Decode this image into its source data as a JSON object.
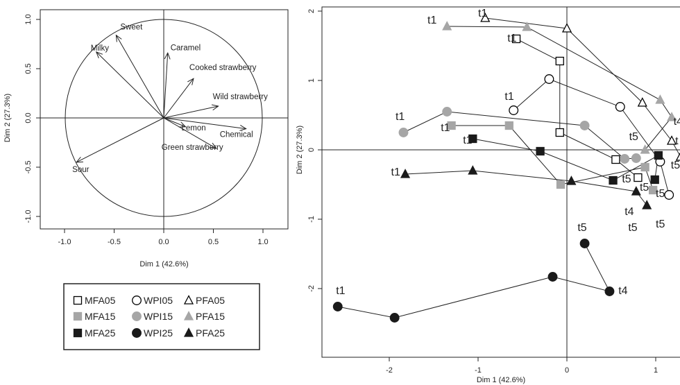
{
  "chart_data": [
    {
      "type": "scatter",
      "subtype": "variable-correlation-circle",
      "xlabel": "Dim 1 (42.6%)",
      "ylabel": "Dim 2 (27.3%)",
      "xlim": [
        -1.2,
        1.2
      ],
      "ylim": [
        -1.05,
        1.05
      ],
      "xticks": [
        -1.0,
        -0.5,
        0.0,
        0.5,
        1.0
      ],
      "yticks": [
        -1.0,
        -0.5,
        0.0,
        0.5,
        1.0
      ],
      "xtick_labels": [
        "-1.0",
        "-0.5",
        "0.0",
        "0.5",
        "1.0"
      ],
      "ytick_labels": [
        "-1.0",
        "-0.5",
        "0.0",
        "0.5",
        "1.0"
      ],
      "vectors": [
        {
          "label": "Sweet",
          "x": -0.48,
          "y": 0.84
        },
        {
          "label": "Milky",
          "x": -0.68,
          "y": 0.67
        },
        {
          "label": "Caramel",
          "x": 0.04,
          "y": 0.66
        },
        {
          "label": "Cooked strawberry",
          "x": 0.3,
          "y": 0.4
        },
        {
          "label": "Wild strawberry",
          "x": 0.55,
          "y": 0.12
        },
        {
          "label": "Lemon",
          "x": 0.22,
          "y": -0.09
        },
        {
          "label": "Chemical",
          "x": 0.83,
          "y": -0.11
        },
        {
          "label": "Green strawberry",
          "x": 0.53,
          "y": -0.31
        },
        {
          "label": "Sour",
          "x": -0.88,
          "y": -0.45
        }
      ]
    },
    {
      "type": "scatter",
      "subtype": "individual-trajectories",
      "xlabel": "Dim 1 (42.6%)",
      "ylabel": "Dim 2 (27.3%)",
      "xlim": [
        -2.65,
        1.25
      ],
      "ylim": [
        -2.45,
        2.0
      ],
      "xticks": [
        -2,
        -1,
        0,
        1
      ],
      "yticks": [
        -2,
        -1,
        0,
        1,
        2
      ],
      "xtick_labels": [
        "-2",
        "-1",
        "0",
        "1"
      ],
      "ytick_labels": [
        "-2",
        "-1",
        "0",
        "1",
        "2"
      ],
      "series": [
        {
          "name": "MFA05",
          "marker": "square",
          "fill": "none",
          "color": "#000000",
          "points": [
            [
              -0.57,
              1.6
            ],
            [
              -0.08,
              1.28
            ],
            [
              -0.08,
              0.25
            ],
            [
              0.55,
              -0.14
            ],
            [
              0.8,
              -0.4
            ]
          ]
        },
        {
          "name": "WPI05",
          "marker": "circle",
          "fill": "none",
          "color": "#000000",
          "points": [
            [
              -0.6,
              0.57
            ],
            [
              -0.2,
              1.02
            ],
            [
              0.6,
              0.62
            ],
            [
              1.05,
              -0.17
            ],
            [
              1.15,
              -0.65
            ]
          ]
        },
        {
          "name": "PFA05",
          "marker": "triangle",
          "fill": "none",
          "color": "#000000",
          "points": [
            [
              -0.92,
              1.9
            ],
            [
              0.0,
              1.75
            ],
            [
              0.85,
              0.68
            ],
            [
              1.18,
              0.13
            ],
            [
              1.28,
              -0.1
            ]
          ]
        },
        {
          "name": "MFA15",
          "marker": "square",
          "fill": "#a6a6a6",
          "color": "#a6a6a6",
          "points": [
            [
              -1.3,
              0.35
            ],
            [
              -0.65,
              0.35
            ],
            [
              -0.07,
              -0.5
            ],
            [
              0.88,
              -0.25
            ],
            [
              0.97,
              -0.58
            ]
          ]
        },
        {
          "name": "WPI15",
          "marker": "circle",
          "fill": "#a6a6a6",
          "color": "#a6a6a6",
          "points": [
            [
              -1.84,
              0.25
            ],
            [
              -1.35,
              0.55
            ],
            [
              0.2,
              0.35
            ],
            [
              0.65,
              -0.13
            ],
            [
              0.78,
              -0.12
            ]
          ]
        },
        {
          "name": "PFA15",
          "marker": "triangle",
          "fill": "#a6a6a6",
          "color": "#a6a6a6",
          "points": [
            [
              -1.35,
              1.78
            ],
            [
              -0.45,
              1.77
            ],
            [
              1.05,
              0.72
            ],
            [
              1.18,
              0.47
            ],
            [
              0.88,
              0.0
            ]
          ]
        },
        {
          "name": "MFA25",
          "marker": "square",
          "fill": "#1a1a1a",
          "color": "#1a1a1a",
          "points": [
            [
              -1.06,
              0.16
            ],
            [
              -0.3,
              -0.02
            ],
            [
              0.52,
              -0.44
            ],
            [
              1.03,
              -0.08
            ],
            [
              0.99,
              -0.43
            ]
          ]
        },
        {
          "name": "WPI25",
          "marker": "circle",
          "fill": "#1a1a1a",
          "color": "#1a1a1a",
          "points": [
            [
              -2.58,
              -2.26
            ],
            [
              -1.94,
              -2.42
            ],
            [
              -0.16,
              -1.83
            ],
            [
              0.48,
              -2.04
            ],
            [
              0.2,
              -1.35
            ]
          ]
        },
        {
          "name": "PFA25",
          "marker": "triangle",
          "fill": "#1a1a1a",
          "color": "#1a1a1a",
          "points": [
            [
              -1.82,
              -0.35
            ],
            [
              -1.06,
              -0.3
            ],
            [
              0.05,
              -0.45
            ],
            [
              0.78,
              -0.6
            ],
            [
              0.9,
              -0.8
            ]
          ]
        }
      ],
      "annotations": [
        {
          "text": "t1",
          "x": -1.57,
          "y": 1.82
        },
        {
          "text": "t1",
          "x": -1.0,
          "y": 1.92
        },
        {
          "text": "t1",
          "x": -0.67,
          "y": 1.56
        },
        {
          "text": "t1",
          "x": -0.7,
          "y": 0.72
        },
        {
          "text": "t1",
          "x": -1.93,
          "y": 0.43
        },
        {
          "text": "t1",
          "x": -1.42,
          "y": 0.27
        },
        {
          "text": "t1",
          "x": -1.17,
          "y": 0.09
        },
        {
          "text": "t1",
          "x": -1.98,
          "y": -0.37
        },
        {
          "text": "t1",
          "x": -2.6,
          "y": -2.08
        },
        {
          "text": "t5",
          "x": 0.7,
          "y": 0.14
        },
        {
          "text": "t5",
          "x": 0.62,
          "y": -0.47
        },
        {
          "text": "t5",
          "x": 0.82,
          "y": -0.59
        },
        {
          "text": "t4",
          "x": 0.65,
          "y": -0.94
        },
        {
          "text": "t5",
          "x": 0.69,
          "y": -1.17
        },
        {
          "text": "t5",
          "x": 1.0,
          "y": -1.12
        },
        {
          "text": "t5",
          "x": 1.0,
          "y": -0.68
        },
        {
          "text": "t5",
          "x": 1.17,
          "y": -0.27
        },
        {
          "text": "t4",
          "x": 1.2,
          "y": 0.36
        },
        {
          "text": "t",
          "x": 1.22,
          "y": 0.08
        },
        {
          "text": "t5",
          "x": 0.12,
          "y": -1.17
        },
        {
          "text": "t4",
          "x": 0.58,
          "y": -2.08
        }
      ]
    }
  ],
  "legend": {
    "entries": [
      {
        "label": "MFA05",
        "marker": "square",
        "fill": "none"
      },
      {
        "label": "WPI05",
        "marker": "circle",
        "fill": "none"
      },
      {
        "label": "PFA05",
        "marker": "triangle",
        "fill": "none"
      },
      {
        "label": "MFA15",
        "marker": "square",
        "fill": "#a6a6a6"
      },
      {
        "label": "WPI15",
        "marker": "circle",
        "fill": "#a6a6a6"
      },
      {
        "label": "PFA15",
        "marker": "triangle",
        "fill": "#a6a6a6"
      },
      {
        "label": "MFA25",
        "marker": "square",
        "fill": "#1a1a1a"
      },
      {
        "label": "WPI25",
        "marker": "circle",
        "fill": "#1a1a1a"
      },
      {
        "label": "PFA25",
        "marker": "triangle",
        "fill": "#1a1a1a"
      }
    ]
  }
}
